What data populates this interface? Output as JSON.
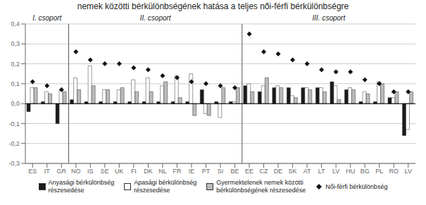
{
  "chart_data": {
    "type": "bar",
    "title": "nemek közötti bérkülönbségének hatása a teljes női-férfi bérkülönbségre",
    "categories": [
      "ES",
      "IT",
      "GR",
      "NO",
      "IS",
      "SE",
      "UK",
      "FI",
      "DK",
      "NL",
      "FR",
      "IE",
      "PT",
      "SI",
      "BE",
      "EE",
      "CZ",
      "DE",
      "SK",
      "AT",
      "LT",
      "LV",
      "HU",
      "BG",
      "PL",
      "RO",
      "LV"
    ],
    "series": [
      {
        "name": "Anyasági bérkülönbség\nrészesedése",
        "type": "bar",
        "color": "#1a1a1a",
        "values": [
          -0.04,
          0.01,
          -0.1,
          0.02,
          0.01,
          0.01,
          0.01,
          0.01,
          0.01,
          0.01,
          0.01,
          0.01,
          0.07,
          0.01,
          0.01,
          0.09,
          0.06,
          0.08,
          0.08,
          0.08,
          0.08,
          0.11,
          0.07,
          0.01,
          0.01,
          0.03,
          -0.16
        ]
      },
      {
        "name": "Apasági bérkülönbség\nrészesedése",
        "type": "bar",
        "color": "#ffffff",
        "values": [
          0.08,
          0.06,
          0.07,
          0.13,
          0.19,
          0.07,
          0.07,
          0.12,
          0.13,
          0.09,
          0.14,
          0.15,
          -0.05,
          -0.07,
          0.01,
          0.1,
          0.09,
          0.09,
          0.04,
          0.08,
          0.08,
          0.09,
          0.08,
          0.06,
          0.11,
          0.03,
          -0.13
        ]
      },
      {
        "name": "Gyermektelenek nemek közötti\nbérkülönbségének részesedése",
        "type": "bar",
        "color": "#bbbbbb",
        "values": [
          0.08,
          0.05,
          0.06,
          0.07,
          0.09,
          0.07,
          0.08,
          0.06,
          0.06,
          0.11,
          0.03,
          -0.06,
          -0.06,
          0.08,
          0.08,
          0.06,
          0.13,
          0.08,
          0.03,
          0.07,
          0.06,
          0.02,
          0.07,
          0.05,
          0.1,
          0.06,
          0.06
        ]
      },
      {
        "name": "Női-férfi bérkülönbség",
        "type": "scatter",
        "marker": "diamond",
        "color": "#111111",
        "values": [
          0.11,
          0.09,
          0.07,
          0.26,
          0.22,
          0.2,
          0.2,
          0.18,
          0.17,
          0.14,
          0.13,
          0.11,
          0.1,
          0.09,
          0.08,
          0.35,
          0.26,
          0.25,
          0.22,
          0.2,
          0.17,
          0.16,
          0.16,
          0.12,
          0.1,
          0.06,
          0.06
        ]
      }
    ],
    "ylim": [
      -0.3,
      0.4
    ],
    "yticks": [
      {
        "value": -0.3,
        "label": "-0,3"
      },
      {
        "value": -0.2,
        "label": "-0,2"
      },
      {
        "value": -0.1,
        "label": "-0,1"
      },
      {
        "value": 0.0,
        "label": "0,0"
      },
      {
        "value": 0.1,
        "label": "0,1"
      },
      {
        "value": 0.2,
        "label": "0,2"
      },
      {
        "value": 0.3,
        "label": "0,3"
      },
      {
        "value": 0.4,
        "label": "0,4"
      }
    ],
    "grid": true,
    "annotations": [
      {
        "text": "I. csoport",
        "start": 0,
        "end": 2
      },
      {
        "text": "II. csoport",
        "start": 3,
        "end": 14
      },
      {
        "text": "III. csoport",
        "start": 15,
        "end": 26
      }
    ]
  }
}
